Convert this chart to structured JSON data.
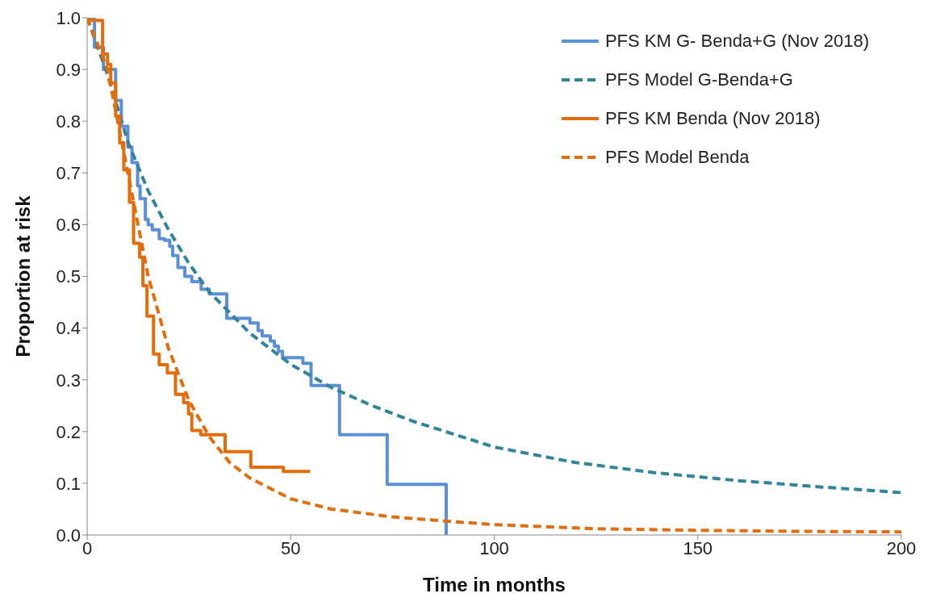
{
  "chart_data": {
    "type": "line",
    "xlabel": "Time in months",
    "ylabel": "Proportion at risk",
    "xlim": [
      0,
      200
    ],
    "xticks": [
      0,
      50,
      100,
      150,
      200
    ],
    "ylim": [
      0,
      1
    ],
    "yticks": [
      {
        "value": 0,
        "label": "0.0"
      },
      0.1,
      0.2,
      0.3,
      0.4,
      0.5,
      0.6,
      0.7,
      0.8,
      0.9,
      {
        "value": 1,
        "label": "1.0"
      }
    ],
    "grid": false,
    "legend": "top right",
    "marker": "none",
    "series": [
      {
        "name": "PFS KM G- Benda+G (Nov 2018)",
        "type": "step",
        "color": "#5b8fd8",
        "line_style": "solid",
        "x": [
          0,
          1.8,
          4,
          7,
          8.4,
          10,
          11,
          12.4,
          13,
          14.3,
          15,
          16,
          17.7,
          19,
          20.3,
          21,
          22.3,
          24,
          25.7,
          28,
          30,
          34.3,
          36,
          40,
          42,
          43,
          45,
          46,
          47,
          48,
          53,
          55,
          62,
          73.7,
          88.2
        ],
        "values": [
          1,
          0.943,
          0.9,
          0.84,
          0.79,
          0.75,
          0.72,
          0.675,
          0.65,
          0.61,
          0.6,
          0.59,
          0.573,
          0.57,
          0.558,
          0.54,
          0.517,
          0.5,
          0.49,
          0.475,
          0.466,
          0.419,
          0.419,
          0.41,
          0.395,
          0.385,
          0.375,
          0.365,
          0.355,
          0.343,
          0.332,
          0.289,
          0.194,
          0.098,
          0
        ]
      },
      {
        "name": "PFS Model G-Benda+G",
        "color": "#31849b",
        "line_style": "dashed",
        "x": [
          0,
          5,
          10,
          15,
          20,
          25,
          30,
          40,
          50,
          60,
          70,
          80,
          100,
          120,
          140,
          160,
          180,
          200
        ],
        "values": [
          1,
          0.89,
          0.76,
          0.665,
          0.59,
          0.525,
          0.47,
          0.39,
          0.33,
          0.285,
          0.25,
          0.22,
          0.17,
          0.14,
          0.12,
          0.105,
          0.093,
          0.082
        ]
      },
      {
        "name": "PFS KM Benda (Nov 2018)",
        "type": "step",
        "color": "#e46c0a",
        "line_style": "solid",
        "x": [
          0,
          0.4,
          3.8,
          5,
          5.8,
          7,
          8,
          9,
          10.4,
          11.4,
          12.9,
          13.7,
          14.7,
          16.3,
          17.7,
          19.7,
          21.7,
          23.7,
          24.9,
          25.7,
          27.9,
          33.9,
          40.2,
          48.2,
          54.8
        ],
        "values": [
          1,
          0.995,
          0.93,
          0.91,
          0.874,
          0.81,
          0.758,
          0.706,
          0.643,
          0.564,
          0.537,
          0.482,
          0.423,
          0.35,
          0.329,
          0.313,
          0.272,
          0.256,
          0.234,
          0.202,
          0.194,
          0.161,
          0.131,
          0.123,
          0.123
        ]
      },
      {
        "name": "PFS Model Benda",
        "color": "#e46c0a",
        "line_style": "dashed",
        "x": [
          0,
          5,
          10,
          15,
          20,
          25,
          30,
          35,
          40,
          50,
          60,
          75,
          88,
          100,
          125,
          150,
          175,
          200
        ],
        "values": [
          1,
          0.9,
          0.7,
          0.5,
          0.36,
          0.26,
          0.19,
          0.14,
          0.11,
          0.07,
          0.05,
          0.035,
          0.027,
          0.02,
          0.012,
          0.009,
          0.007,
          0.006
        ]
      }
    ]
  }
}
